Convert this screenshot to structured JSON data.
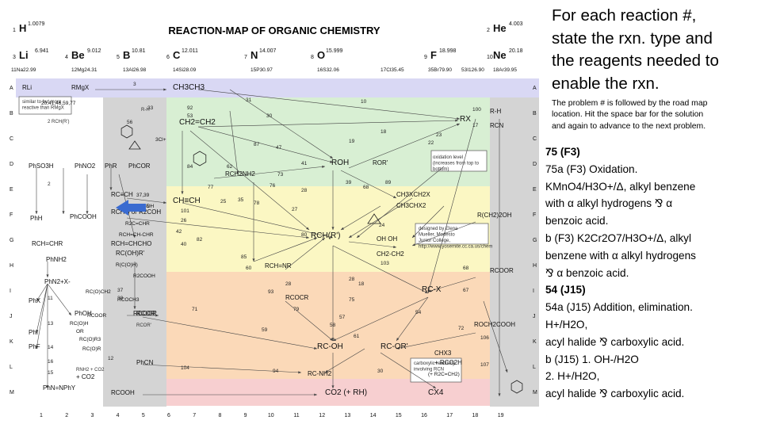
{
  "map": {
    "title": "REACTION-MAP OF ORGANIC CHEMISTRY",
    "elements": [
      {
        "sym": "H",
        "num": "1",
        "mass": "1.0079"
      },
      {
        "sym": "He",
        "num": "2",
        "mass": "4.003"
      },
      {
        "sym": "Li",
        "num": "3",
        "mass": "6.941"
      },
      {
        "sym": "Be",
        "num": "4",
        "mass": "9.012"
      },
      {
        "sym": "B",
        "num": "5",
        "mass": "10.81"
      },
      {
        "sym": "C",
        "num": "6",
        "mass": "12.011"
      },
      {
        "sym": "N",
        "num": "7",
        "mass": "14.007"
      },
      {
        "sym": "O",
        "num": "8",
        "mass": "15.999"
      },
      {
        "sym": "F",
        "num": "9",
        "mass": "18.998"
      },
      {
        "sym": "Ne",
        "num": "10",
        "mass": "20.18"
      },
      {
        "sym": "Na",
        "num": "11",
        "mass": "22.99"
      },
      {
        "sym": "Mg",
        "num": "12",
        "mass": "24.31"
      },
      {
        "sym": "Al",
        "num": "13",
        "mass": "26.98"
      },
      {
        "sym": "Si",
        "num": "14",
        "mass": "28.09"
      },
      {
        "sym": "P",
        "num": "15",
        "mass": "30.97"
      },
      {
        "sym": "S",
        "num": "16",
        "mass": "32.06"
      },
      {
        "sym": "Cl",
        "num": "17",
        "mass": "35.45"
      },
      {
        "sym": "Br",
        "num": "35",
        "mass": "79.90"
      },
      {
        "sym": "I",
        "num": "53",
        "mass": "126.90"
      },
      {
        "sym": "Ar",
        "num": "18",
        "mass": "39.95"
      }
    ],
    "row_letters": [
      "A",
      "B",
      "C",
      "D",
      "E",
      "F",
      "G",
      "H",
      "I",
      "J",
      "K",
      "L",
      "M"
    ],
    "col_numbers": [
      "1",
      "2",
      "3",
      "4",
      "5",
      "6",
      "7",
      "8",
      "9",
      "10",
      "11",
      "12",
      "13",
      "14",
      "15",
      "16",
      "17",
      "18",
      "19"
    ],
    "compounds": [
      {
        "id": "rli",
        "text": "RLi"
      },
      {
        "id": "rmgx",
        "text": "RMgX"
      },
      {
        "id": "alkane",
        "text": "CH3CH3"
      },
      {
        "id": "alkene",
        "text": "CH2=CH2"
      },
      {
        "id": "rx",
        "text": "RX"
      },
      {
        "id": "rh",
        "text": "R-H"
      },
      {
        "id": "rcn",
        "text": "RCN"
      },
      {
        "id": "roh",
        "text": "ROH"
      },
      {
        "id": "ror",
        "text": "ROR'"
      },
      {
        "id": "rch2nh2",
        "text": "RCH2NH2"
      },
      {
        "id": "alkyne",
        "text": "CH≡CH"
      },
      {
        "id": "rcch",
        "text": "RC≡CH"
      },
      {
        "id": "dihalide",
        "text": "CH3XCH2X"
      },
      {
        "id": "gemdihalide",
        "text": "CH3CHX2"
      },
      {
        "id": "rchrr",
        "text": "RCH(R')"
      },
      {
        "id": "diol",
        "text": "OH OH"
      },
      {
        "id": "ch2ch2",
        "text": "CH2-CH2"
      },
      {
        "id": "rcho",
        "text": "RCHO or R2COH"
      },
      {
        "id": "rchnr",
        "text": "RCH=NR"
      },
      {
        "id": "rcocr",
        "text": "RCOCR"
      },
      {
        "id": "rcox",
        "text": "RC-X"
      },
      {
        "id": "rcoor",
        "text": "RCOOR"
      },
      {
        "id": "rcooh",
        "text": "RC-OH"
      },
      {
        "id": "rcoorp",
        "text": "RC-OR'"
      },
      {
        "id": "rconh2",
        "text": "RC-NH2"
      },
      {
        "id": "rcooh2",
        "text": "RCOOH"
      },
      {
        "id": "co2",
        "text": "CO2 (+ RH)"
      },
      {
        "id": "cx4",
        "text": "CX4"
      },
      {
        "id": "phch2oh",
        "text": "R(CH2)2OH"
      },
      {
        "id": "rcoohr",
        "text": "RCOOR"
      },
      {
        "id": "rch2cooh",
        "text": "ROCH2COOH"
      },
      {
        "id": "phno2",
        "text": "PhNO2"
      },
      {
        "id": "phso3h",
        "text": "PhSO3H"
      },
      {
        "id": "phr",
        "text": "PhR"
      },
      {
        "id": "phcor",
        "text": "PhCOR"
      },
      {
        "id": "phcooh",
        "text": "PhCOOH"
      },
      {
        "id": "phh",
        "text": "PhH"
      },
      {
        "id": "phnh2",
        "text": "PhNH2"
      },
      {
        "id": "phn2x",
        "text": "PhN2+X-"
      },
      {
        "id": "phx",
        "text": "PhX"
      },
      {
        "id": "phoh",
        "text": "PhOH"
      },
      {
        "id": "phi",
        "text": "PhI"
      },
      {
        "id": "phf",
        "text": "PhF"
      },
      {
        "id": "phcn",
        "text": "PhCN"
      },
      {
        "id": "phnnph",
        "text": "PhN=NPhY"
      },
      {
        "id": "rcoh2r",
        "text": "RC(OH)R'"
      },
      {
        "id": "rcooh3",
        "text": "RCOR'"
      },
      {
        "id": "chcho",
        "text": "RCH=CHCHO"
      },
      {
        "id": "rccr",
        "text": "RCH=CHR"
      },
      {
        "id": "chxch2",
        "text": "CHX3"
      },
      {
        "id": "rcooch3",
        "text": "+ RCO2H"
      },
      {
        "id": "nh2co2",
        "text": "+ CO2"
      }
    ],
    "numbers": [
      "3",
      "31",
      "10",
      "33",
      "92",
      "100",
      "17",
      "30",
      "53",
      "56",
      "18",
      "23",
      "22",
      "87",
      "47",
      "19",
      "41",
      "62",
      "73",
      "39",
      "68",
      "89",
      "24",
      "76",
      "77",
      "28",
      "84",
      "78",
      "35",
      "25",
      "26",
      "27",
      "82",
      "80",
      "85",
      "60",
      "103",
      "101",
      "42",
      "40",
      "28",
      "18",
      "28",
      "37",
      "38",
      "93",
      "75",
      "79",
      "54",
      "57",
      "71",
      "58",
      "61",
      "68",
      "67",
      "72",
      "94",
      "104",
      "59",
      "30",
      "106",
      "107",
      "2",
      "12",
      "15",
      "14",
      "13",
      "11",
      "16"
    ],
    "notes": [
      {
        "id": "oxidation",
        "text": "oxidation level (increases from top to bottom)"
      },
      {
        "id": "credit",
        "text": "designed by Elena Mueller, Modesto Junior College, http://www.yosemite.cc.ca.us/chem"
      },
      {
        "id": "carboxylic",
        "text": "carboxylic reactivity involving RCN"
      },
      {
        "id": "similar",
        "text": "similar to but more reactive than RMgX"
      },
      {
        "id": "legend_a",
        "text": "2 RCH(R')"
      },
      {
        "id": "legend_b",
        "text": "R-H"
      },
      {
        "id": "amine",
        "text": "RNH2 + CO2"
      },
      {
        "id": "aroh",
        "text": "RCOR'"
      }
    ],
    "small_labels": [
      {
        "id": "s1",
        "text": "20,41,46,59,77"
      },
      {
        "id": "s2",
        "text": "3Cl+"
      },
      {
        "id": "s3",
        "text": "37,39"
      },
      {
        "id": "s4",
        "text": "34,35"
      },
      {
        "id": "s5",
        "text": "+ R2CH RCOH"
      },
      {
        "id": "s6",
        "text": "R2C=CHR"
      },
      {
        "id": "s7",
        "text": "RCH=CH-CHR"
      },
      {
        "id": "s8",
        "text": "R2COOH"
      },
      {
        "id": "s9",
        "text": "RC(O)CH2"
      },
      {
        "id": "s10",
        "text": "R(C(O)H)"
      },
      {
        "id": "s11",
        "text": "RCOCH3"
      },
      {
        "id": "s12",
        "text": "RC(O)R3"
      },
      {
        "id": "s13",
        "text": "OR"
      },
      {
        "id": "s14",
        "text": "RC(O)H"
      },
      {
        "id": "s15",
        "text": "RC(O)R"
      },
      {
        "id": "s16",
        "text": "RCOOR"
      },
      {
        "id": "s17",
        "text": "(+ R2C=CH2)"
      }
    ],
    "colors": {
      "purple": "#d9d8f4",
      "green": "#d8efd3",
      "yellow": "#fbf7c3",
      "orange": "#fbd9b8",
      "pink": "#f7cfd0",
      "gray": "#d4d4d4",
      "arrow": "#3a6bd0"
    }
  },
  "side": {
    "heading_lines": [
      "For each reaction #,",
      "state the rxn. type and",
      "the reagents needed to",
      "enable the rxn."
    ],
    "note_lines": [
      "The problem # is followed by the road map",
      "location.  Hit the space bar for the solution",
      "and again to advance to the next problem."
    ],
    "lines": [
      {
        "text": "75 (F3)",
        "bold": true
      },
      {
        "text": "75a (F3)  Oxidation.",
        "bold": false
      },
      {
        "text": "KMnO4/H3O+/Δ, alkyl benzene",
        "bold": false
      },
      {
        "text": "with α alkyl hydrogens ⅋ α",
        "bold": false
      },
      {
        "text": "benzoic acid.",
        "bold": false
      },
      {
        "text": "b (F3)  K2Cr2O7/H3O+/Δ, alkyl",
        "bold": false
      },
      {
        "text": "benzene with α alkyl hydrogens",
        "bold": false
      },
      {
        "text": "⅋ α benzoic acid.",
        "bold": false
      },
      {
        "text": "54 (J15)",
        "bold": true
      },
      {
        "text": "54a (J15)  Addition, elimination.",
        "bold": false
      },
      {
        "text": "H+/H2O,",
        "bold": false
      },
      {
        "text": "acyl halide ⅋ carboxylic acid.",
        "bold": false
      },
      {
        "text": "b (J15)  1. OH-/H2O",
        "bold": false
      },
      {
        "text": "2. H+/H2O,",
        "bold": false
      },
      {
        "text": "acyl halide ⅋ carboxylic acid.",
        "bold": false
      }
    ]
  }
}
